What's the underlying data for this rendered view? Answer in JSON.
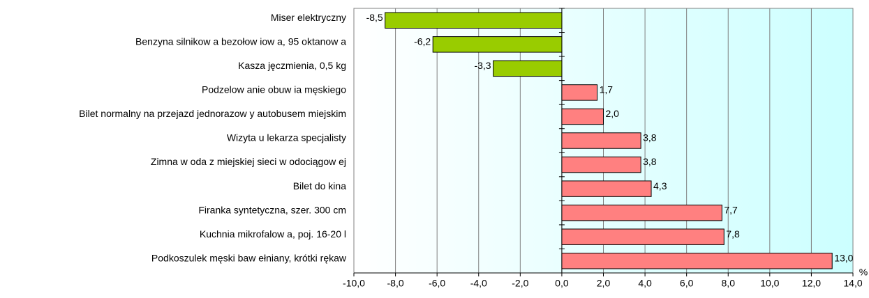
{
  "chart_data": {
    "type": "bar",
    "orientation": "horizontal",
    "categories": [
      "Miser elektryczny",
      "Benzyna silnikow a bezołow iow a, 95 oktanow a",
      "Kasza jęczmienia, 0,5 kg",
      "Podzelow anie obuw ia męskiego",
      "Bilet normalny na przejazd jednorazow y autobusem miejskim",
      "Wizyta u lekarza specjalisty",
      "Zimna w oda z miejskiej sieci w odociągow ej",
      "Bilet do kina",
      "Firanka syntetyczna, szer. 300 cm",
      "Kuchnia mikrofalow a, poj. 16-20 l",
      "Podkoszulek męski baw ełniany, krótki rękaw"
    ],
    "values": [
      -8.5,
      -6.2,
      -3.3,
      1.7,
      2.0,
      3.8,
      3.8,
      4.3,
      7.7,
      7.8,
      13.0
    ],
    "value_labels": [
      "-8,5",
      "-6,2",
      "-3,3",
      "1,7",
      "2,0",
      "3,8",
      "3,8",
      "4,3",
      "7,7",
      "7,8",
      "13,0"
    ],
    "colors": [
      "#99cc00",
      "#99cc00",
      "#99cc00",
      "#ff8080",
      "#ff8080",
      "#ff8080",
      "#ff8080",
      "#ff8080",
      "#ff8080",
      "#ff8080",
      "#ff8080"
    ],
    "xlabel": "%",
    "xlim": [
      -10,
      14
    ],
    "xticks": [
      {
        "value": -10,
        "label": "-10,0"
      },
      {
        "value": -8,
        "label": "-8,0"
      },
      {
        "value": -6,
        "label": "-6,0"
      },
      {
        "value": -4,
        "label": "-4,0"
      },
      {
        "value": -2,
        "label": "-2,0"
      },
      {
        "value": 0,
        "label": "0,0"
      },
      {
        "value": 2,
        "label": "2,0"
      },
      {
        "value": 4,
        "label": "4,0"
      },
      {
        "value": 6,
        "label": "6,0"
      },
      {
        "value": 8,
        "label": "8,0"
      },
      {
        "value": 10,
        "label": "10,0"
      },
      {
        "value": 12,
        "label": "12,0"
      },
      {
        "value": 14,
        "label": "14,0"
      }
    ],
    "grid": true
  }
}
